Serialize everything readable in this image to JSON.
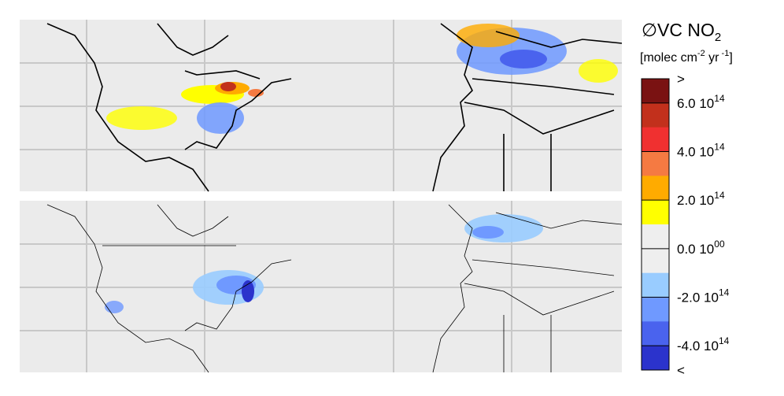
{
  "legend": {
    "title": {
      "main": "∅VC NO",
      "sub": "2"
    },
    "units": {
      "open": "[molec cm",
      "exp1": "-2",
      "mid": " yr",
      "exp2": " -1",
      "close": "]"
    },
    "colors": [
      "#7a1212",
      "#c2301c",
      "#f03030",
      "#f57a42",
      "#ffab00",
      "#ffff00",
      "#eeeeee",
      "#eeeeee",
      "#99ccff",
      "#6f99ff",
      "#4a63ee",
      "#2b33cc"
    ],
    "labels": [
      {
        "text": ">"
      },
      {
        "text": "6.0 10",
        "exp": "14"
      },
      {
        "text": "4.0 10",
        "exp": "14"
      },
      {
        "text": "2.0 10",
        "exp": "14"
      },
      {
        "text": "0.0 10",
        "exp": "00"
      },
      {
        "text": "-2.0 10",
        "exp": "14"
      },
      {
        "text": "-4.0 10",
        "exp": "14"
      },
      {
        "text": "<"
      }
    ]
  }
}
